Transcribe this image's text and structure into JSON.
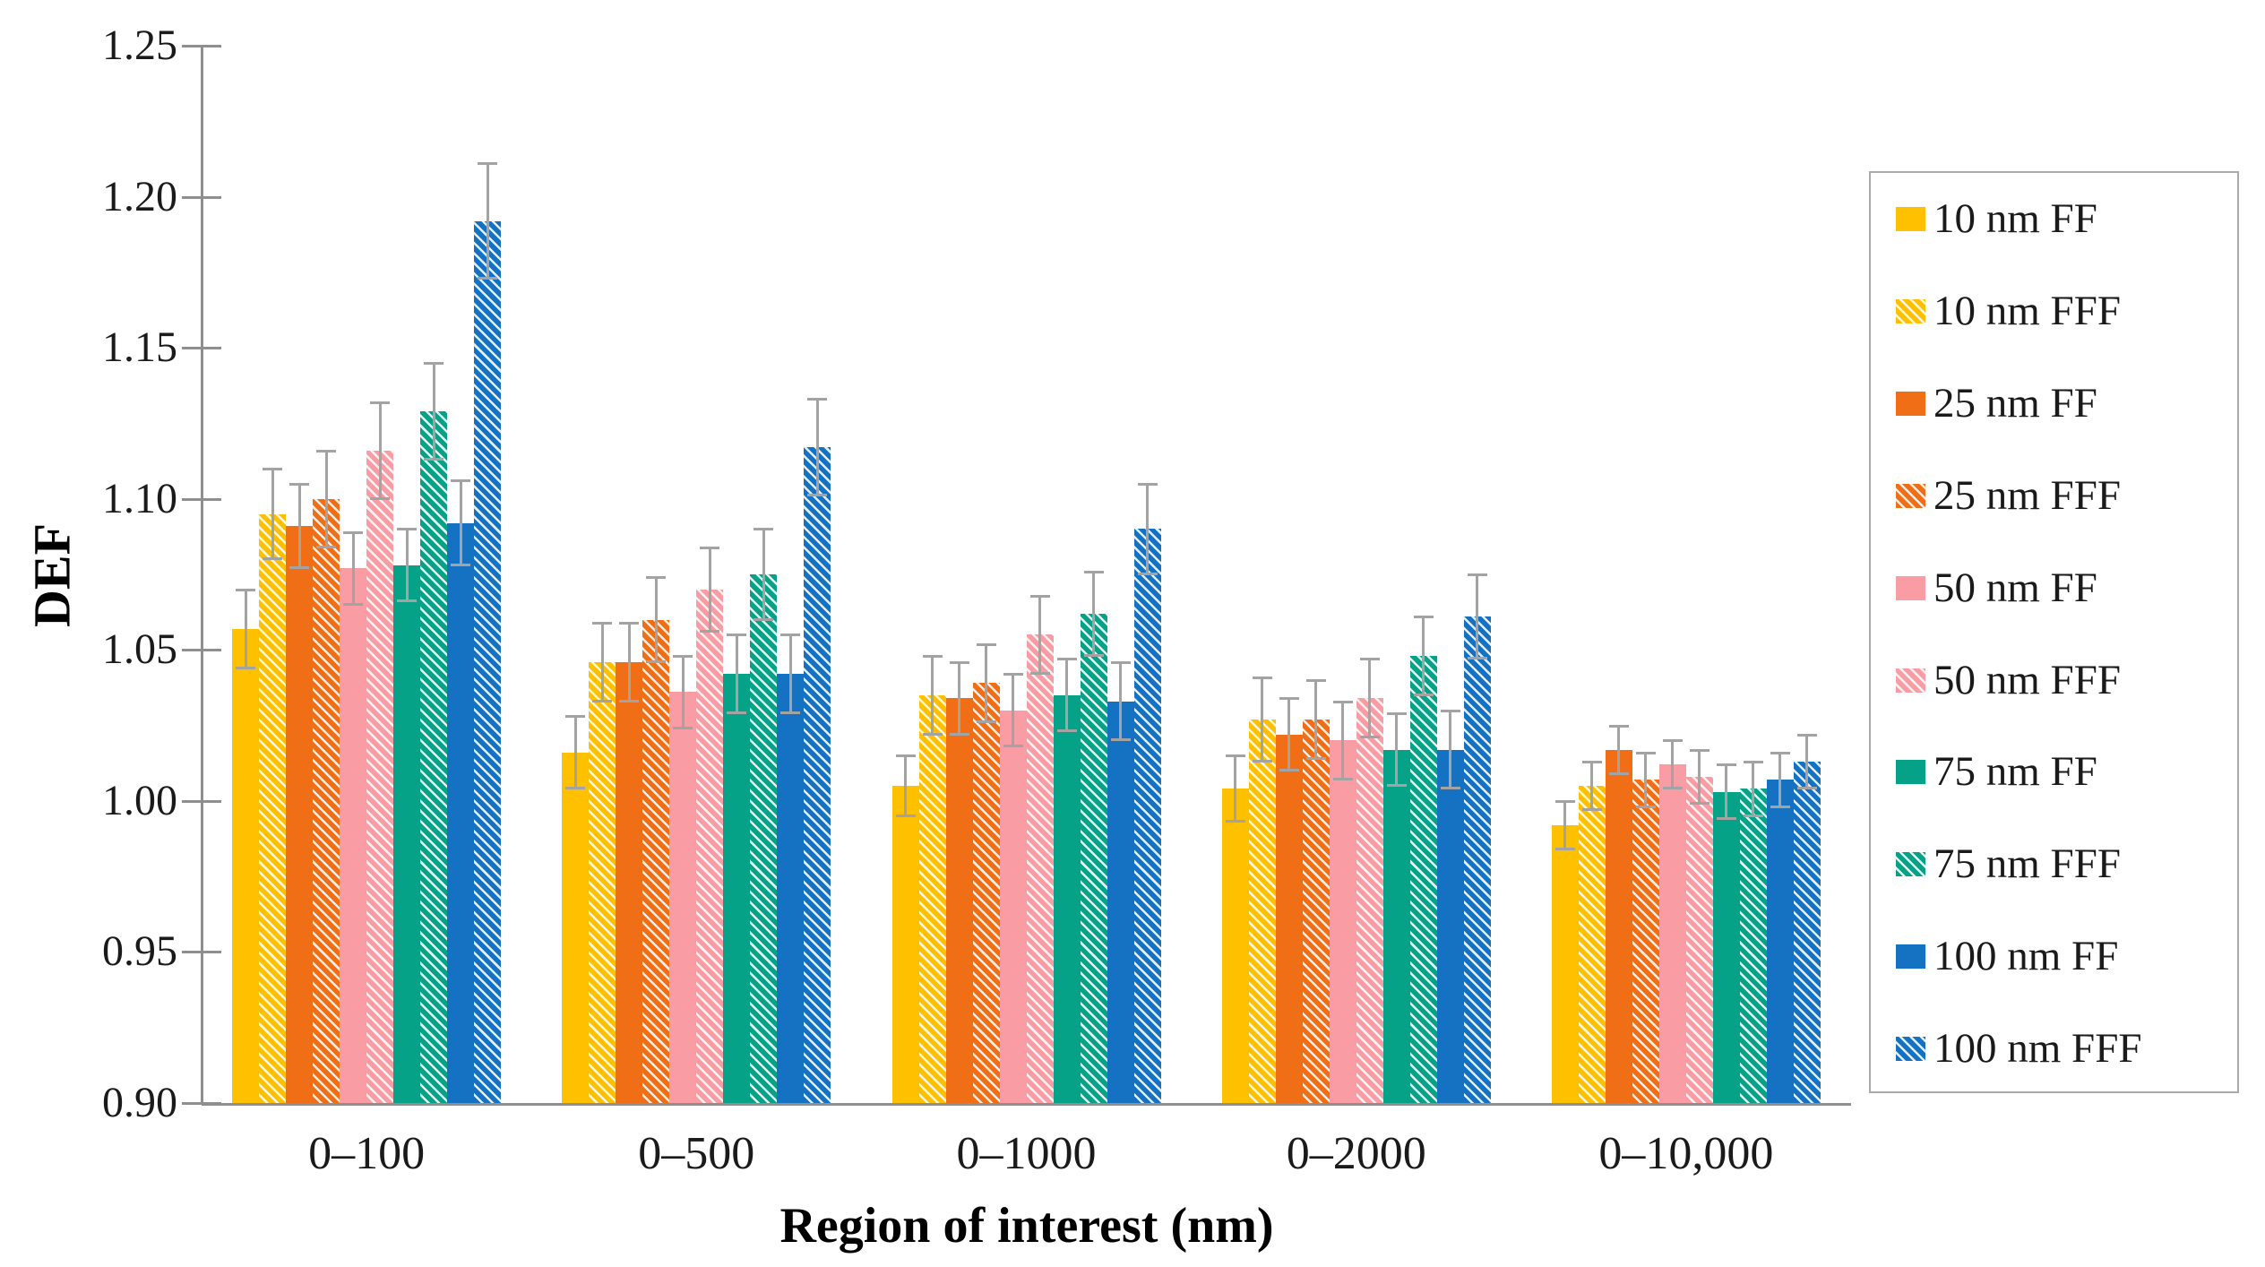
{
  "figure": {
    "background": "#ffffff",
    "error_bar_color": "#a3a3a3",
    "axis_color": "#8f8f8f"
  },
  "chart_data": {
    "type": "bar",
    "title": "",
    "xlabel": "Region of interest (nm)",
    "ylabel": "DEF",
    "ylim": [
      0.9,
      1.25
    ],
    "yticks": [
      0.9,
      0.95,
      1.0,
      1.05,
      1.1,
      1.15,
      1.2,
      1.25
    ],
    "ytick_labels": [
      "0.90",
      "0.95",
      "1.00",
      "1.05",
      "1.10",
      "1.15",
      "1.20",
      "1.25"
    ],
    "grid": false,
    "error_bars": true,
    "legend_position": "right",
    "categories": [
      "0–100",
      "0–500",
      "0–1000",
      "0–2000",
      "0–10,000"
    ],
    "series": [
      {
        "name": "10 nm FF",
        "color": "#FFC000",
        "hatch": false,
        "values": [
          1.057,
          1.016,
          1.005,
          1.004,
          0.992
        ],
        "errors": [
          0.013,
          0.012,
          0.01,
          0.011,
          0.008
        ]
      },
      {
        "name": "10 nm FFF",
        "color": "#FFC000",
        "hatch": true,
        "values": [
          1.095,
          1.046,
          1.035,
          1.027,
          1.005
        ],
        "errors": [
          0.015,
          0.013,
          0.013,
          0.014,
          0.008
        ]
      },
      {
        "name": "25 nm FF",
        "color": "#F06E16",
        "hatch": false,
        "values": [
          1.091,
          1.046,
          1.034,
          1.022,
          1.017
        ],
        "errors": [
          0.014,
          0.013,
          0.012,
          0.012,
          0.008
        ]
      },
      {
        "name": "25 nm FFF",
        "color": "#F06E16",
        "hatch": true,
        "values": [
          1.1,
          1.06,
          1.039,
          1.027,
          1.007
        ],
        "errors": [
          0.016,
          0.014,
          0.013,
          0.013,
          0.009
        ]
      },
      {
        "name": "50 nm FF",
        "color": "#FA9CA3",
        "hatch": false,
        "values": [
          1.077,
          1.036,
          1.03,
          1.02,
          1.012
        ],
        "errors": [
          0.012,
          0.012,
          0.012,
          0.013,
          0.008
        ]
      },
      {
        "name": "50 nm FFF",
        "color": "#FA9CA3",
        "hatch": true,
        "values": [
          1.116,
          1.07,
          1.055,
          1.034,
          1.008
        ],
        "errors": [
          0.016,
          0.014,
          0.013,
          0.013,
          0.009
        ]
      },
      {
        "name": "75 nm FF",
        "color": "#05A287",
        "hatch": false,
        "values": [
          1.078,
          1.042,
          1.035,
          1.017,
          1.003
        ],
        "errors": [
          0.012,
          0.013,
          0.012,
          0.012,
          0.009
        ]
      },
      {
        "name": "75 nm FFF",
        "color": "#05A287",
        "hatch": true,
        "values": [
          1.129,
          1.075,
          1.062,
          1.048,
          1.004
        ],
        "errors": [
          0.016,
          0.015,
          0.014,
          0.013,
          0.009
        ]
      },
      {
        "name": "100 nm FF",
        "color": "#1571C2",
        "hatch": false,
        "values": [
          1.092,
          1.042,
          1.033,
          1.017,
          1.007
        ],
        "errors": [
          0.014,
          0.013,
          0.013,
          0.013,
          0.009
        ]
      },
      {
        "name": "100 nm FFF",
        "color": "#1571C2",
        "hatch": true,
        "values": [
          1.192,
          1.117,
          1.09,
          1.061,
          1.013
        ],
        "errors": [
          0.019,
          0.016,
          0.015,
          0.014,
          0.009
        ]
      }
    ]
  }
}
